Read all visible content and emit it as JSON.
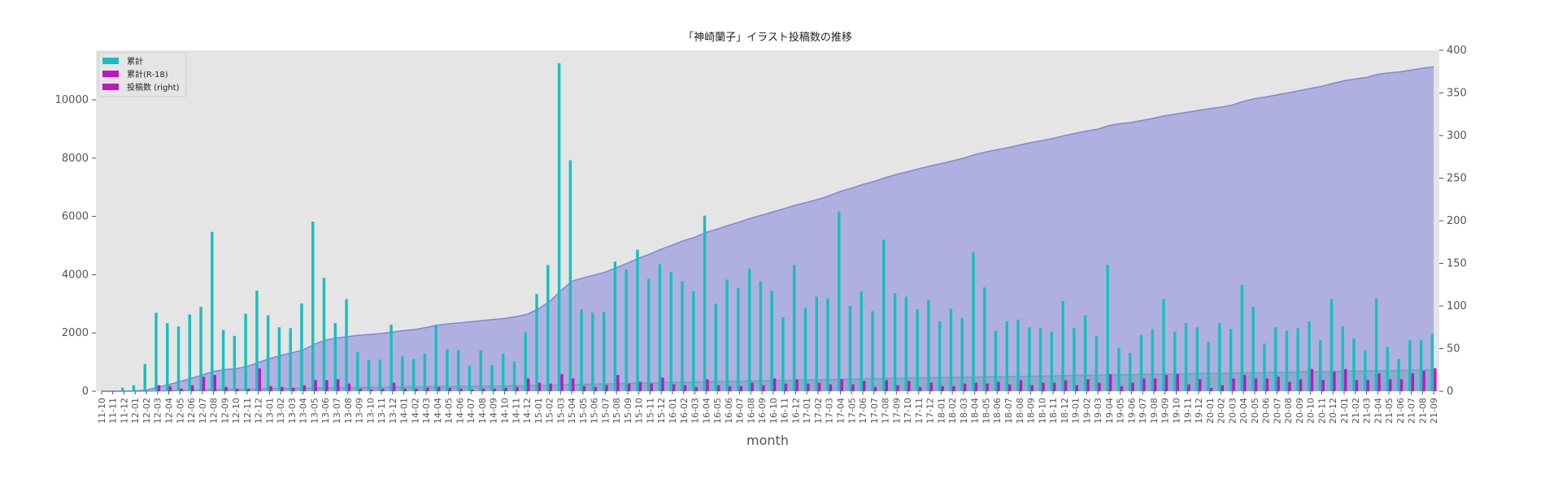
{
  "chart_data": {
    "type": "bar",
    "title": "「神崎蘭子」イラスト投稿数の推移",
    "xlabel": "month",
    "ylabel": "",
    "ylim": [
      0,
      11700
    ],
    "y2lim": [
      0,
      400
    ],
    "y_ticks": [
      0,
      2000,
      4000,
      6000,
      8000,
      10000
    ],
    "y2_ticks": [
      0,
      50,
      100,
      150,
      200,
      250,
      300,
      350,
      400
    ],
    "legend_position": "top-left",
    "grid": false,
    "categories": [
      "11-10",
      "11-11",
      "11-12",
      "12-01",
      "12-02",
      "12-03",
      "12-04",
      "12-05",
      "12-06",
      "12-07",
      "12-08",
      "12-09",
      "12-10",
      "12-11",
      "12-12",
      "13-01",
      "13-02",
      "13-03",
      "13-04",
      "13-05",
      "13-06",
      "13-07",
      "13-08",
      "13-09",
      "13-10",
      "13-11",
      "13-12",
      "14-01",
      "14-02",
      "14-03",
      "14-04",
      "14-05",
      "14-06",
      "14-07",
      "14-08",
      "14-09",
      "14-10",
      "14-11",
      "14-12",
      "15-01",
      "15-02",
      "15-03",
      "15-04",
      "15-05",
      "15-06",
      "15-07",
      "15-08",
      "15-09",
      "15-10",
      "15-11",
      "15-12",
      "16-01",
      "16-02",
      "16-03",
      "16-04",
      "16-05",
      "16-06",
      "16-07",
      "16-08",
      "16-09",
      "16-10",
      "16-11",
      "16-12",
      "17-01",
      "17-02",
      "17-03",
      "17-04",
      "17-05",
      "17-06",
      "17-07",
      "17-08",
      "17-09",
      "17-10",
      "17-11",
      "17-12",
      "18-01",
      "18-02",
      "18-03",
      "18-04",
      "18-05",
      "18-06",
      "18-07",
      "18-08",
      "18-09",
      "18-10",
      "18-11",
      "18-12",
      "19-01",
      "19-02",
      "19-03",
      "19-04",
      "19-05",
      "19-06",
      "19-07",
      "19-08",
      "19-09",
      "19-10",
      "19-11",
      "19-12",
      "20-01",
      "20-02",
      "20-03",
      "20-04",
      "20-05",
      "20-06",
      "20-07",
      "20-08",
      "20-09",
      "20-10",
      "20-11",
      "20-12",
      "21-01",
      "21-02",
      "21-03",
      "21-04",
      "21-05",
      "21-06",
      "21-07",
      "21-08",
      "21-09"
    ],
    "series": [
      {
        "name": "累計",
        "kind": "bar",
        "axis": "right",
        "color": "#17bfbf",
        "values": [
          0,
          0,
          4,
          7,
          32,
          92,
          80,
          76,
          90,
          99,
          187,
          72,
          65,
          91,
          118,
          89,
          75,
          74,
          103,
          199,
          133,
          80,
          108,
          46,
          37,
          37,
          78,
          41,
          38,
          44,
          78,
          49,
          48,
          30,
          48,
          31,
          44,
          35,
          69,
          114,
          148,
          385,
          271,
          96,
          92,
          93,
          152,
          143,
          166,
          132,
          149,
          140,
          129,
          117,
          206,
          103,
          131,
          121,
          144,
          129,
          118,
          87,
          148,
          98,
          111,
          109,
          211,
          100,
          117,
          94,
          178,
          115,
          111,
          96,
          107,
          82,
          97,
          86,
          163,
          122,
          71,
          82,
          84,
          75,
          74,
          70,
          106,
          74,
          89,
          65,
          148,
          51,
          45,
          66,
          73,
          108,
          70,
          80,
          75,
          58,
          80,
          73,
          125,
          99,
          56,
          75,
          71,
          74,
          82,
          60,
          108,
          76,
          62,
          48,
          109,
          52,
          38,
          60,
          60,
          67
        ]
      },
      {
        "name": "累計(R-18)",
        "kind": "bar",
        "axis": "right",
        "color": "#bf17bf",
        "values": [
          0,
          0,
          0,
          0,
          0,
          7,
          6,
          3,
          7,
          17,
          19,
          5,
          3,
          3,
          27,
          6,
          5,
          4,
          7,
          13,
          13,
          14,
          9,
          3,
          2,
          3,
          10,
          3,
          3,
          4,
          5,
          4,
          3,
          2,
          3,
          3,
          4,
          5,
          15,
          10,
          9,
          20,
          15,
          6,
          5,
          7,
          19,
          9,
          11,
          9,
          16,
          8,
          7,
          5,
          14,
          7,
          6,
          6,
          10,
          7,
          15,
          9,
          14,
          9,
          10,
          8,
          14,
          8,
          12,
          5,
          13,
          7,
          12,
          5,
          10,
          6,
          6,
          9,
          10,
          9,
          11,
          8,
          13,
          7,
          10,
          10,
          13,
          7,
          14,
          10,
          20,
          6,
          10,
          15,
          15,
          19,
          20,
          8,
          14,
          4,
          7,
          15,
          19,
          15,
          15,
          17,
          11,
          14,
          26,
          13,
          23,
          26,
          13,
          13,
          21,
          14,
          14,
          21,
          24,
          27
        ]
      },
      {
        "name": "投稿数 (right)",
        "kind": "area",
        "axis": "right",
        "color": "#7b7bdc",
        "values": [
          0,
          0,
          0.1,
          0.4,
          1.3,
          4.7,
          7.8,
          11.3,
          15.1,
          19.1,
          23.3,
          25.2,
          26.5,
          29.0,
          33.7,
          38.3,
          41.9,
          45.0,
          48.4,
          55.1,
          60.0,
          62.5,
          64.1,
          65.7,
          66.7,
          67.8,
          69.4,
          71.2,
          72.5,
          74.8,
          77.5,
          79.1,
          80.3,
          81.5,
          82.9,
          84.2,
          85.4,
          87.5,
          90.2,
          96.6,
          105.0,
          117.5,
          129.0,
          132.9,
          136.2,
          139.8,
          145.0,
          150.4,
          156.2,
          161.0,
          166.7,
          171.5,
          176.7,
          180.8,
          186.3,
          190.2,
          194.6,
          198.6,
          203.1,
          206.7,
          210.5,
          214.3,
          218.3,
          221.6,
          225.1,
          229.3,
          234.5,
          238.3,
          242.6,
          246.1,
          250.5,
          254.3,
          257.5,
          261.0,
          264.2,
          267.1,
          270.2,
          273.5,
          277.7,
          280.7,
          283.3,
          285.9,
          288.8,
          291.7,
          294.1,
          296.7,
          299.9,
          302.6,
          305.3,
          307.5,
          311.8,
          313.9,
          315.4,
          317.9,
          320.4,
          323.3,
          325.4,
          327.4,
          329.5,
          331.5,
          333.4,
          335.9,
          340.0,
          343.4,
          345.2,
          347.7,
          350.0,
          352.7,
          355.3,
          357.8,
          361.2,
          364.3,
          366.4,
          368.2,
          371.8,
          373.6,
          374.8,
          376.8,
          379.1,
          380.6
        ]
      },
      {
        "name": "",
        "kind": "area",
        "axis": "left",
        "color": "#5fbf8f",
        "values": [
          0,
          0,
          0,
          0,
          0,
          9,
          15,
          23,
          30,
          38,
          46,
          52,
          58,
          66,
          75,
          83,
          89,
          95,
          101,
          108,
          115,
          121,
          127,
          130,
          133,
          137,
          144,
          147,
          149,
          153,
          158,
          162,
          165,
          168,
          171,
          173,
          176,
          180,
          187,
          194,
          201,
          216,
          230,
          237,
          244,
          251,
          261,
          268,
          276,
          283,
          292,
          299,
          306,
          313,
          321,
          328,
          334,
          341,
          350,
          356,
          363,
          370,
          378,
          384,
          392,
          399,
          409,
          415,
          422,
          428,
          437,
          444,
          450,
          456,
          463,
          468,
          474,
          480,
          488,
          494,
          499,
          505,
          511,
          516,
          522,
          527,
          534,
          539,
          545,
          551,
          560,
          564,
          568,
          574,
          580,
          587,
          592,
          599,
          603,
          609,
          614,
          621,
          628,
          635,
          641,
          646,
          652,
          659,
          665,
          670,
          677,
          684,
          689,
          695,
          703,
          707,
          712,
          718,
          725,
          731
        ]
      }
    ]
  }
}
